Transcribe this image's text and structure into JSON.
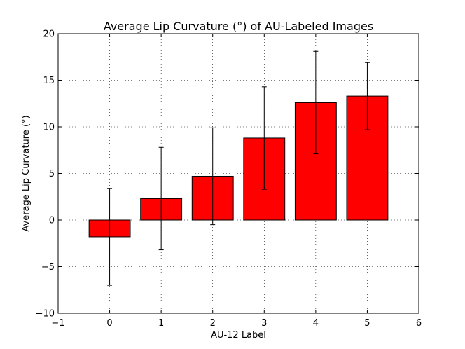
{
  "chart_data": {
    "type": "bar",
    "title": "Average Lip Curvature (°) of AU-Labeled Images",
    "xlabel": "AU-12 Label",
    "ylabel": "Average Lip Curvature (°)",
    "xlim": [
      -1,
      6
    ],
    "ylim": [
      -10,
      20
    ],
    "x_ticks": [
      -1,
      0,
      1,
      2,
      3,
      4,
      5,
      6
    ],
    "y_ticks": [
      -10,
      -5,
      0,
      5,
      10,
      15,
      20
    ],
    "x_tick_labels": [
      "−1",
      "0",
      "1",
      "2",
      "3",
      "4",
      "5",
      "6"
    ],
    "y_tick_labels": [
      "−10",
      "−5",
      "0",
      "5",
      "10",
      "15",
      "20"
    ],
    "grid": true,
    "bar_color": "#ff0000",
    "bar_width": 0.8,
    "categories": [
      0,
      1,
      2,
      3,
      4,
      5
    ],
    "values": [
      -1.8,
      2.3,
      4.7,
      8.8,
      12.6,
      13.3
    ],
    "errors": [
      5.2,
      5.5,
      5.2,
      5.5,
      5.5,
      3.6
    ]
  }
}
